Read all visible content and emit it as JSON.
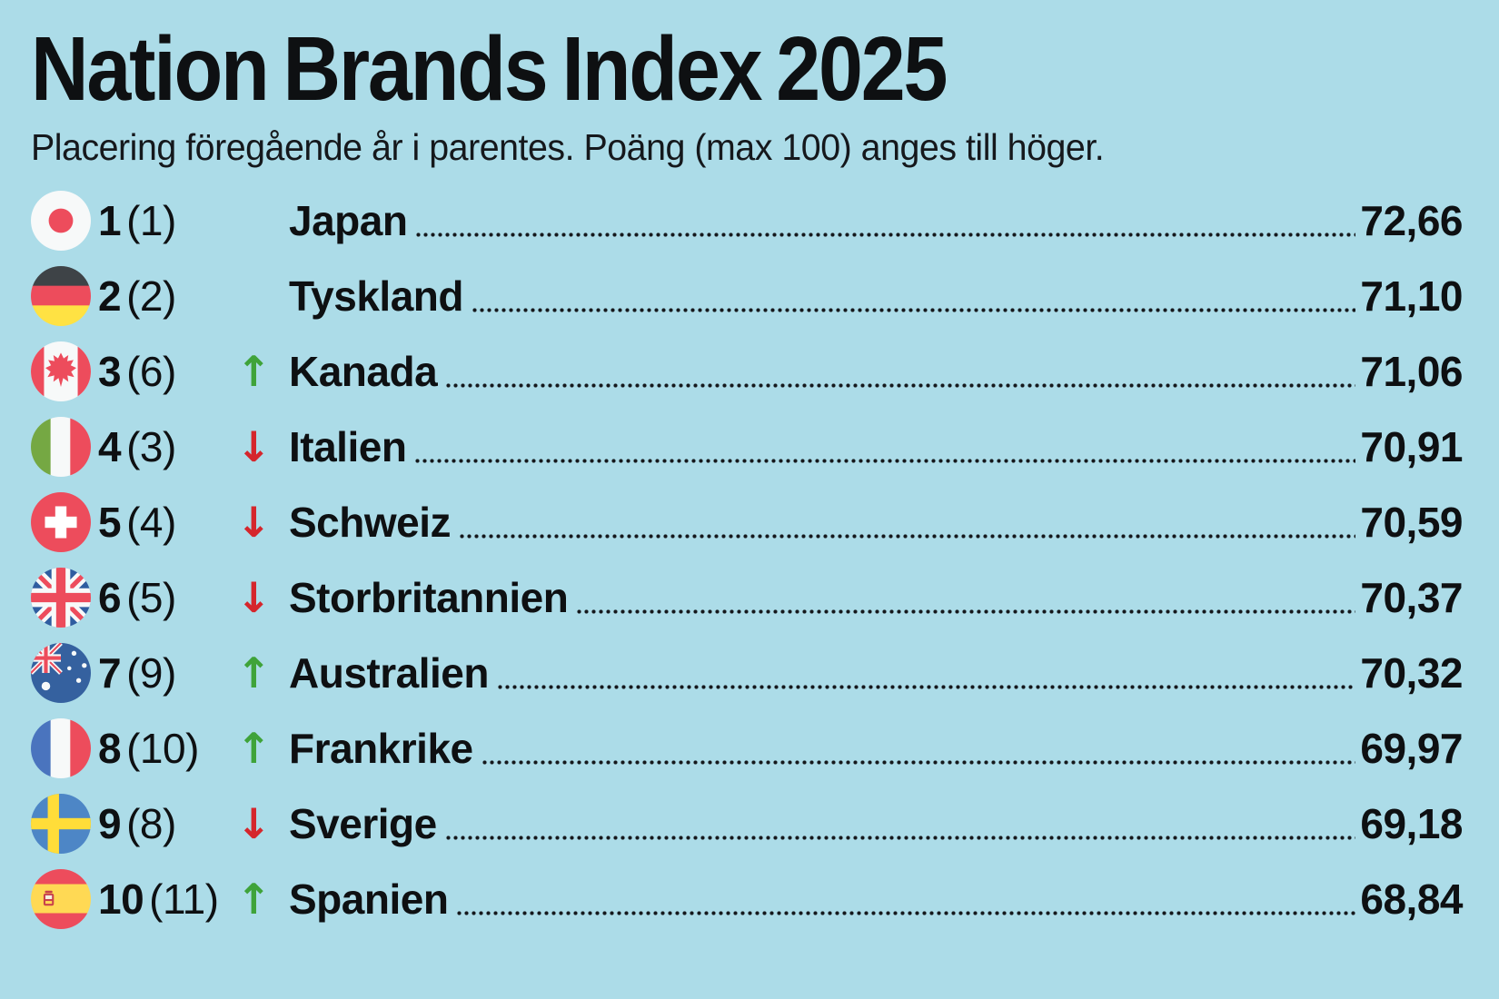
{
  "title": "Nation Brands Index 2025",
  "subtitle": "Placering föregående år i parentes. Poäng (max 100) anges till höger.",
  "colors": {
    "background": "#ACDCE8",
    "text": "#0E1012",
    "trend_up_green": "#3FA33A",
    "trend_down_red": "#D5262C",
    "flag_red": "#ED4C5C",
    "flag_blue_uk": "#2F5DA0",
    "flag_yellow": "#FFE243"
  },
  "chart_data": {
    "type": "table",
    "title": "Nation Brands Index 2025",
    "subtitle": "Placering föregående år i parentes. Poäng (max 100) anges till höger.",
    "columns": [
      "rank",
      "previous_rank",
      "trend",
      "country",
      "score"
    ],
    "score_max": 100,
    "score_decimal_separator": ",",
    "rows": [
      {
        "rank": 1,
        "previous_rank": 1,
        "trend": "same",
        "country": "Japan",
        "score": "72,66",
        "flag_icon": "japan-flag-icon"
      },
      {
        "rank": 2,
        "previous_rank": 2,
        "trend": "same",
        "country": "Tyskland",
        "score": "71,10",
        "flag_icon": "germany-flag-icon"
      },
      {
        "rank": 3,
        "previous_rank": 6,
        "trend": "up",
        "country": "Kanada",
        "score": "71,06",
        "flag_icon": "canada-flag-icon"
      },
      {
        "rank": 4,
        "previous_rank": 3,
        "trend": "down",
        "country": "Italien",
        "score": "70,91",
        "flag_icon": "italy-flag-icon"
      },
      {
        "rank": 5,
        "previous_rank": 4,
        "trend": "down",
        "country": "Schweiz",
        "score": "70,59",
        "flag_icon": "switzerland-flag-icon"
      },
      {
        "rank": 6,
        "previous_rank": 5,
        "trend": "down",
        "country": "Storbritannien",
        "score": "70,37",
        "flag_icon": "uk-flag-icon"
      },
      {
        "rank": 7,
        "previous_rank": 9,
        "trend": "up",
        "country": "Australien",
        "score": "70,32",
        "flag_icon": "australia-flag-icon"
      },
      {
        "rank": 8,
        "previous_rank": 10,
        "trend": "up",
        "country": "Frankrike",
        "score": "69,97",
        "flag_icon": "france-flag-icon"
      },
      {
        "rank": 9,
        "previous_rank": 8,
        "trend": "down",
        "country": "Sverige",
        "score": "69,18",
        "flag_icon": "sweden-flag-icon"
      },
      {
        "rank": 10,
        "previous_rank": 11,
        "trend": "up",
        "country": "Spanien",
        "score": "68,84",
        "flag_icon": "spain-flag-icon"
      }
    ],
    "trend_icons": {
      "up": "↑",
      "down": "↓"
    }
  }
}
